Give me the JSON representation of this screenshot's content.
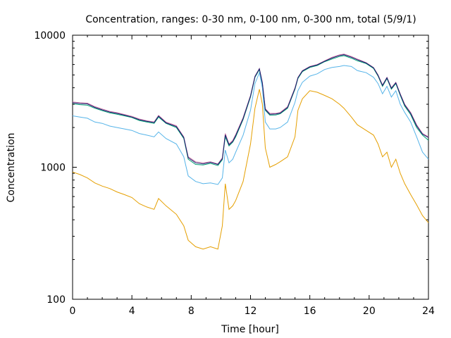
{
  "chart_data": {
    "type": "line",
    "title": "Concentration, ranges: 0-30 nm, 0-100 nm, 0-300 nm, total (5/9/1)",
    "xlabel": "Time [hour]",
    "ylabel": "Concentration",
    "xlim": [
      0,
      24
    ],
    "ylim": [
      100,
      10000
    ],
    "yscale": "log",
    "xticks": [
      "0",
      "4",
      "8",
      "12",
      "16",
      "20",
      "24"
    ],
    "yticks": [
      "100",
      "1000",
      "10000"
    ],
    "grid": false,
    "legend": "none",
    "x": [
      0,
      0.5,
      1,
      1.5,
      2,
      2.5,
      3,
      3.5,
      4,
      4.5,
      5,
      5.5,
      5.8,
      6.3,
      7,
      7.5,
      7.8,
      8.3,
      8.8,
      9.3,
      9.8,
      10.1,
      10.3,
      10.55,
      10.8,
      11,
      11.5,
      12,
      12.3,
      12.6,
      12.8,
      13,
      13.3,
      13.7,
      14,
      14.5,
      15,
      15.2,
      15.5,
      16,
      16.5,
      17,
      17.5,
      18,
      18.3,
      18.8,
      19.2,
      19.8,
      20.3,
      20.6,
      20.9,
      21.2,
      21.5,
      21.8,
      22.1,
      22.4,
      22.8,
      23.2,
      23.6,
      24
    ],
    "series": [
      {
        "color": "#e59f00",
        "values": [
          920,
          880,
          830,
          760,
          720,
          690,
          650,
          620,
          590,
          530,
          500,
          480,
          580,
          510,
          440,
          360,
          280,
          250,
          240,
          250,
          240,
          360,
          750,
          480,
          510,
          560,
          780,
          1500,
          2800,
          3900,
          3000,
          1400,
          1000,
          1050,
          1100,
          1200,
          1700,
          2700,
          3300,
          3800,
          3700,
          3500,
          3300,
          3000,
          2800,
          2400,
          2100,
          1900,
          1750,
          1500,
          1200,
          1300,
          1000,
          1150,
          900,
          750,
          620,
          520,
          430,
          380
        ]
      },
      {
        "color": "#56b4e9",
        "values": [
          2450,
          2400,
          2350,
          2200,
          2150,
          2050,
          2000,
          1950,
          1900,
          1800,
          1750,
          1700,
          1850,
          1650,
          1500,
          1200,
          860,
          780,
          750,
          760,
          740,
          830,
          1350,
          1080,
          1150,
          1300,
          1750,
          2700,
          4300,
          5200,
          4000,
          2200,
          1950,
          1950,
          2000,
          2200,
          3100,
          3800,
          4400,
          4900,
          5100,
          5500,
          5700,
          5800,
          5900,
          5800,
          5400,
          5200,
          4800,
          4300,
          3600,
          4100,
          3400,
          3800,
          3000,
          2600,
          2200,
          1700,
          1300,
          1150
        ]
      },
      {
        "color": "#009e73",
        "values": [
          3020,
          2980,
          2950,
          2800,
          2680,
          2580,
          2520,
          2450,
          2380,
          2260,
          2200,
          2150,
          2400,
          2150,
          2000,
          1650,
          1150,
          1050,
          1040,
          1070,
          1030,
          1140,
          1700,
          1450,
          1550,
          1700,
          2300,
          3400,
          4800,
          5500,
          4300,
          2700,
          2480,
          2490,
          2540,
          2800,
          3900,
          4700,
          5300,
          5700,
          5900,
          6300,
          6600,
          6900,
          7000,
          6700,
          6400,
          6100,
          5600,
          4900,
          4100,
          4700,
          3900,
          4300,
          3500,
          2900,
          2500,
          2000,
          1750,
          1600
        ]
      },
      {
        "color": "#cc79a7",
        "values": [
          3120,
          3080,
          3060,
          2880,
          2760,
          2650,
          2590,
          2510,
          2430,
          2320,
          2250,
          2200,
          2470,
          2200,
          2060,
          1700,
          1200,
          1100,
          1080,
          1100,
          1060,
          1180,
          1800,
          1500,
          1600,
          1770,
          2380,
          3500,
          4900,
          5600,
          4400,
          2780,
          2560,
          2560,
          2600,
          2880,
          4000,
          4800,
          5400,
          5800,
          6000,
          6400,
          6800,
          7100,
          7200,
          6900,
          6600,
          6200,
          5700,
          5000,
          4200,
          4800,
          4000,
          4400,
          3600,
          3000,
          2600,
          2100,
          1800,
          1700
        ]
      },
      {
        "color": "#1a1a6e",
        "values": [
          3080,
          3040,
          3020,
          2840,
          2720,
          2620,
          2560,
          2480,
          2400,
          2290,
          2230,
          2180,
          2440,
          2170,
          2030,
          1680,
          1180,
          1080,
          1060,
          1090,
          1050,
          1160,
          1760,
          1480,
          1570,
          1740,
          2340,
          3460,
          4860,
          5560,
          4360,
          2740,
          2520,
          2530,
          2570,
          2840,
          3950,
          4760,
          5360,
          5760,
          5960,
          6360,
          6720,
          7020,
          7120,
          6820,
          6520,
          6160,
          5660,
          4960,
          4160,
          4760,
          3960,
          4360,
          3560,
          2960,
          2560,
          2060,
          1780,
          1680
        ]
      }
    ]
  }
}
